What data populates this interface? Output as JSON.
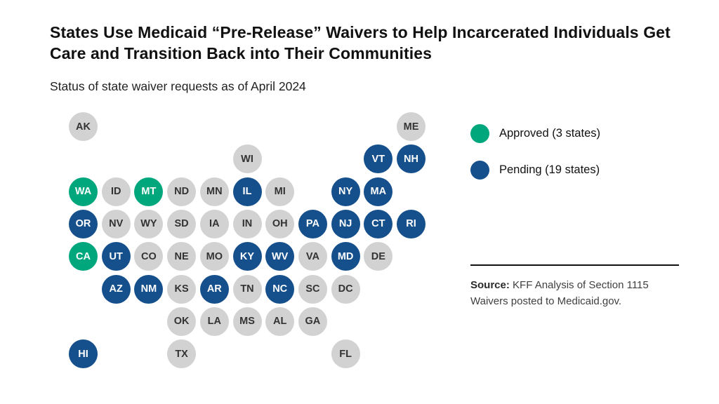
{
  "title": "States Use Medicaid “Pre-Release” Waivers to Help Incarcerated Individuals Get Care and Transition Back into Their Communities",
  "subtitle": "Status of state waiver requests as of April 2024",
  "legend": {
    "items": [
      {
        "label": "Approved (3 states)",
        "status": "approved"
      },
      {
        "label": "Pending (19 states)",
        "status": "pending"
      }
    ],
    "position": "right"
  },
  "source": {
    "label": "Source:",
    "text": " KFF Analysis of Section 1115 Waivers posted to Medicaid.gov."
  },
  "colors": {
    "approved": "#00A77D",
    "pending": "#15508C",
    "none": "#D2D2D2",
    "text_on_color": "#FFFFFF",
    "text_on_gray": "#333333"
  },
  "chart_data": {
    "type": "heatmap",
    "subtype": "us-state-tile-grid-map",
    "title": "States Use Medicaid “Pre-Release” Waivers to Help Incarcerated Individuals Get Care and Transition Back into Their Communities",
    "subtitle": "Status of state waiver requests as of April 2024",
    "legend_entries": [
      "Approved (3 states)",
      "Pending (19 states)"
    ],
    "counts": {
      "approved": 3,
      "pending": 19
    },
    "layout": {
      "col_step": 46.7,
      "row_step": 46.3,
      "tile_diameter": 41
    },
    "states": [
      {
        "abbr": "AK",
        "status": "none",
        "row": 0,
        "col": 0
      },
      {
        "abbr": "ME",
        "status": "none",
        "row": 0,
        "col": 10
      },
      {
        "abbr": "WI",
        "status": "none",
        "row": 1,
        "col": 5
      },
      {
        "abbr": "VT",
        "status": "pending",
        "row": 1,
        "col": 9
      },
      {
        "abbr": "NH",
        "status": "pending",
        "row": 1,
        "col": 10
      },
      {
        "abbr": "WA",
        "status": "approved",
        "row": 2,
        "col": 0
      },
      {
        "abbr": "ID",
        "status": "none",
        "row": 2,
        "col": 1
      },
      {
        "abbr": "MT",
        "status": "approved",
        "row": 2,
        "col": 2
      },
      {
        "abbr": "ND",
        "status": "none",
        "row": 2,
        "col": 3
      },
      {
        "abbr": "MN",
        "status": "none",
        "row": 2,
        "col": 4
      },
      {
        "abbr": "IL",
        "status": "pending",
        "row": 2,
        "col": 5
      },
      {
        "abbr": "MI",
        "status": "none",
        "row": 2,
        "col": 6
      },
      {
        "abbr": "NY",
        "status": "pending",
        "row": 2,
        "col": 8
      },
      {
        "abbr": "MA",
        "status": "pending",
        "row": 2,
        "col": 9
      },
      {
        "abbr": "OR",
        "status": "pending",
        "row": 3,
        "col": 0
      },
      {
        "abbr": "NV",
        "status": "none",
        "row": 3,
        "col": 1
      },
      {
        "abbr": "WY",
        "status": "none",
        "row": 3,
        "col": 2
      },
      {
        "abbr": "SD",
        "status": "none",
        "row": 3,
        "col": 3
      },
      {
        "abbr": "IA",
        "status": "none",
        "row": 3,
        "col": 4
      },
      {
        "abbr": "IN",
        "status": "none",
        "row": 3,
        "col": 5
      },
      {
        "abbr": "OH",
        "status": "none",
        "row": 3,
        "col": 6
      },
      {
        "abbr": "PA",
        "status": "pending",
        "row": 3,
        "col": 7
      },
      {
        "abbr": "NJ",
        "status": "pending",
        "row": 3,
        "col": 8
      },
      {
        "abbr": "CT",
        "status": "pending",
        "row": 3,
        "col": 9
      },
      {
        "abbr": "RI",
        "status": "pending",
        "row": 3,
        "col": 10
      },
      {
        "abbr": "CA",
        "status": "approved",
        "row": 4,
        "col": 0
      },
      {
        "abbr": "UT",
        "status": "pending",
        "row": 4,
        "col": 1
      },
      {
        "abbr": "CO",
        "status": "none",
        "row": 4,
        "col": 2
      },
      {
        "abbr": "NE",
        "status": "none",
        "row": 4,
        "col": 3
      },
      {
        "abbr": "MO",
        "status": "none",
        "row": 4,
        "col": 4
      },
      {
        "abbr": "KY",
        "status": "pending",
        "row": 4,
        "col": 5
      },
      {
        "abbr": "WV",
        "status": "pending",
        "row": 4,
        "col": 6
      },
      {
        "abbr": "VA",
        "status": "none",
        "row": 4,
        "col": 7
      },
      {
        "abbr": "MD",
        "status": "pending",
        "row": 4,
        "col": 8
      },
      {
        "abbr": "DE",
        "status": "none",
        "row": 4,
        "col": 9
      },
      {
        "abbr": "AZ",
        "status": "pending",
        "row": 5,
        "col": 1
      },
      {
        "abbr": "NM",
        "status": "pending",
        "row": 5,
        "col": 2
      },
      {
        "abbr": "KS",
        "status": "none",
        "row": 5,
        "col": 3
      },
      {
        "abbr": "AR",
        "status": "pending",
        "row": 5,
        "col": 4
      },
      {
        "abbr": "TN",
        "status": "none",
        "row": 5,
        "col": 5
      },
      {
        "abbr": "NC",
        "status": "pending",
        "row": 5,
        "col": 6
      },
      {
        "abbr": "SC",
        "status": "none",
        "row": 5,
        "col": 7
      },
      {
        "abbr": "DC",
        "status": "none",
        "row": 5,
        "col": 8
      },
      {
        "abbr": "OK",
        "status": "none",
        "row": 6,
        "col": 3
      },
      {
        "abbr": "LA",
        "status": "none",
        "row": 6,
        "col": 4
      },
      {
        "abbr": "MS",
        "status": "none",
        "row": 6,
        "col": 5
      },
      {
        "abbr": "AL",
        "status": "none",
        "row": 6,
        "col": 6
      },
      {
        "abbr": "GA",
        "status": "none",
        "row": 6,
        "col": 7
      },
      {
        "abbr": "HI",
        "status": "pending",
        "row": 7,
        "col": 0
      },
      {
        "abbr": "TX",
        "status": "none",
        "row": 7,
        "col": 3
      },
      {
        "abbr": "FL",
        "status": "none",
        "row": 7,
        "col": 8
      }
    ]
  }
}
